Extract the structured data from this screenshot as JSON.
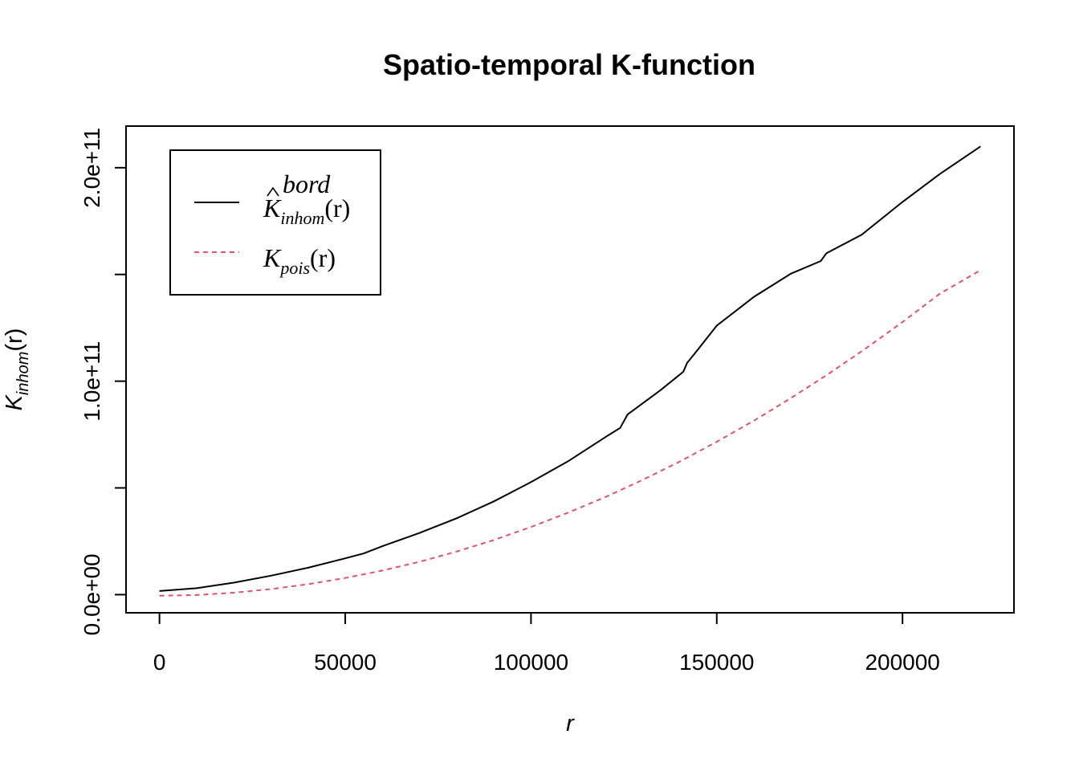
{
  "chart_data": {
    "type": "line",
    "title": "Spatio-temporal K-function",
    "xlabel": "r",
    "ylabel": {
      "base": "K",
      "sub": "inhom",
      "arg": "(r)"
    },
    "xlim": [
      -9000,
      230000
    ],
    "ylim": [
      -8500000000,
      219500000000
    ],
    "x_ticks": [
      {
        "value": 0,
        "label": "0"
      },
      {
        "value": 50000,
        "label": "50000"
      },
      {
        "value": 100000,
        "label": "100000"
      },
      {
        "value": 150000,
        "label": "150000"
      },
      {
        "value": 200000,
        "label": "200000"
      }
    ],
    "y_ticks": [
      {
        "value": 0,
        "label": "0.0e+00"
      },
      {
        "value": 50000000000,
        "label": ""
      },
      {
        "value": 100000000000,
        "label": "1.0e+11"
      },
      {
        "value": 150000000000,
        "label": ""
      },
      {
        "value": 200000000000,
        "label": "2.0e+11"
      }
    ],
    "legend": {
      "position": "top-left",
      "entries": [
        {
          "series": 0,
          "base": "K",
          "hat": true,
          "sup": "bord",
          "sub": "inhom",
          "arg": "(r)"
        },
        {
          "series": 1,
          "base": "K",
          "hat": false,
          "sup": "",
          "sub": "pois",
          "arg": "(r)"
        }
      ]
    },
    "series": [
      {
        "color": "#000000",
        "dash": "solid",
        "x": [
          0,
          10000,
          20000,
          30000,
          40000,
          50000,
          55000,
          60000,
          70000,
          80000,
          90000,
          100000,
          110000,
          120000,
          124000,
          126000,
          135000,
          141000,
          142000,
          145000,
          150000,
          160000,
          170000,
          178000,
          179500,
          189000,
          200000,
          210000,
          221000
        ],
        "y": [
          1700000000,
          3000000000,
          5600000000,
          8900000000,
          12600000000,
          17000000000,
          19300000000,
          22700000000,
          28900000000,
          35800000000,
          43700000000,
          52700000000,
          62500000000,
          73800000000,
          78100000000,
          84400000000,
          96000000000,
          104400000000,
          108500000000,
          115000000000,
          126000000000,
          139500000000,
          150400000000,
          156300000000,
          159900000000,
          168600000000,
          184000000000,
          197000000000,
          210000000000
        ]
      },
      {
        "color": "#DF536B",
        "dash": "dashed",
        "x": [
          0,
          10000,
          20000,
          30000,
          40000,
          50000,
          60000,
          70000,
          80000,
          90000,
          100000,
          110000,
          120000,
          130000,
          140000,
          150000,
          160000,
          170000,
          180000,
          190000,
          200000,
          210000,
          221000
        ],
        "y": [
          -500000000,
          -200000000,
          900000000,
          2600000000,
          4900000000,
          7800000000,
          11300000000,
          15400000000,
          20200000000,
          25600000000,
          31700000000,
          38400000000,
          45700000000,
          53700000000,
          62300000000,
          71600000000,
          81500000000,
          92100000000,
          103300000000,
          115200000000,
          127700000000,
          140900000000,
          152000000000
        ]
      }
    ]
  }
}
